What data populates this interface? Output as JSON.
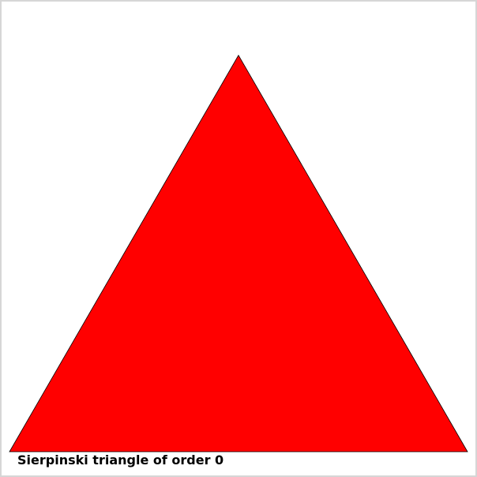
{
  "caption": "Sierpinski triangle of order 0",
  "fractal": {
    "order": 0,
    "fill_color": "#ff0000",
    "stroke_color": "#000000",
    "background_color": "#ffffff"
  }
}
